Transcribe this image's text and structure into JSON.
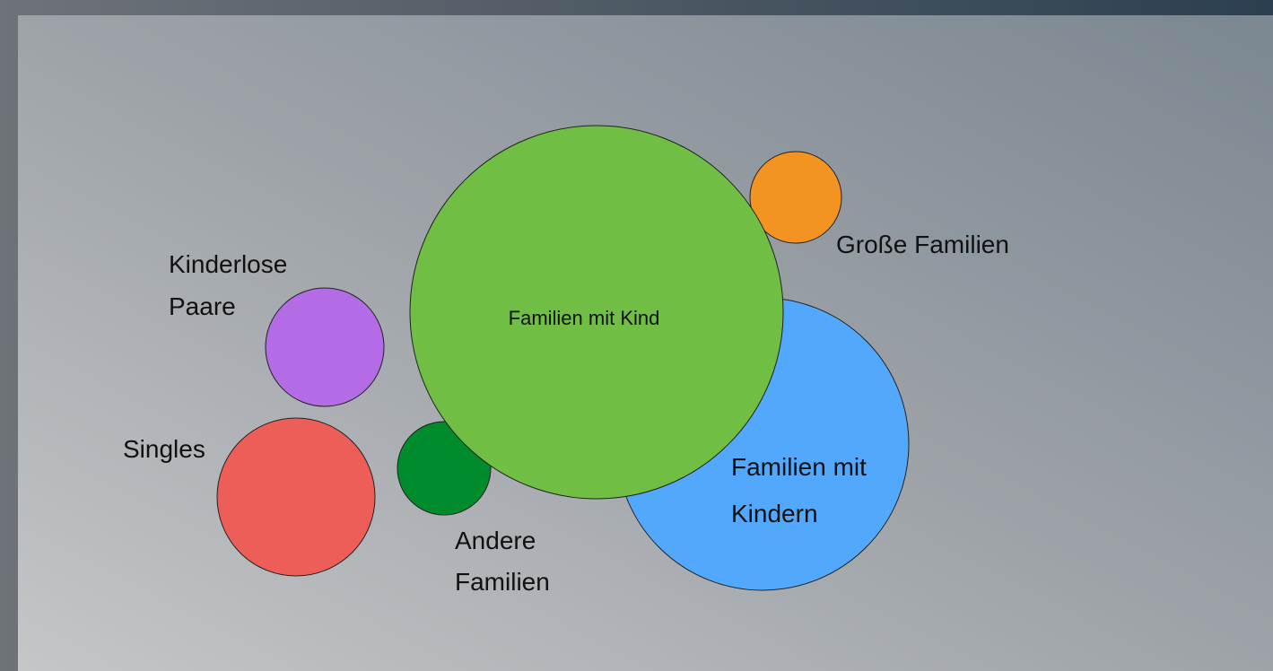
{
  "nodes": [
    {
      "lines": [
        "Familien mit",
        "Kindern"
      ]
    },
    {
      "lines": [
        "Große Familien"
      ]
    },
    {
      "lines": [
        "Andere",
        "Familien"
      ]
    },
    {
      "lines": [
        "Kinderlose",
        "Paare"
      ]
    },
    {
      "lines": [
        "Singles"
      ]
    },
    {
      "lines": [
        "Familien mit Kind"
      ]
    }
  ]
}
